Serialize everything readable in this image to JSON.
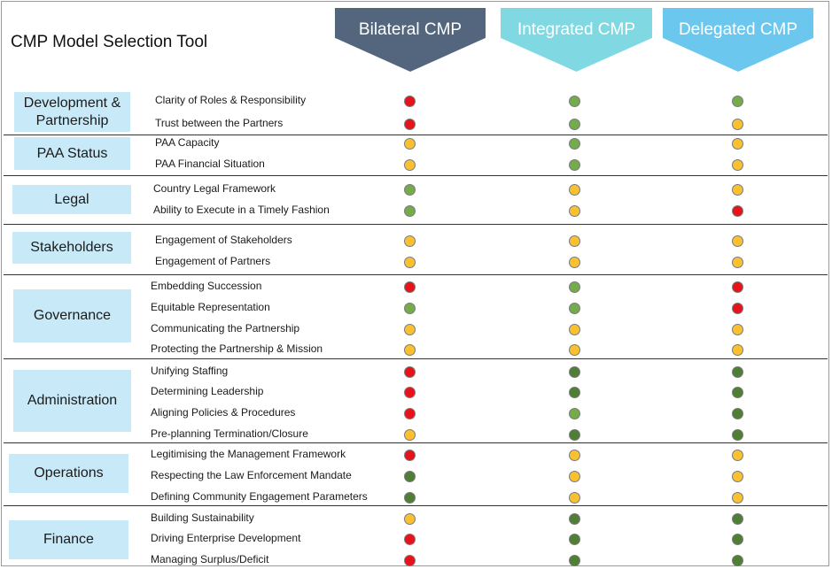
{
  "title": "CMP Model Selection Tool",
  "models": [
    {
      "label": "Bilateral CMP",
      "color": "#53667e",
      "text_color": "#ffffff"
    },
    {
      "label": "Integrated CMP",
      "color": "#80d9e2",
      "text_color": "#ffffff"
    },
    {
      "label": "Delegated CMP",
      "color": "#6bc7ee",
      "text_color": "#ffffff"
    }
  ],
  "rating_colors": {
    "red": "#e8121b",
    "amber": "#fbc02d",
    "green": "#75ac4a",
    "dark_green": "#4f7e35"
  },
  "categories": [
    {
      "name": "Development &\nPartnership",
      "criteria": [
        {
          "label": "Clarity of Roles & Responsibility",
          "ratings": [
            "red",
            "green",
            "green"
          ]
        },
        {
          "label": "Trust between the Partners",
          "ratings": [
            "red",
            "green",
            "amber"
          ]
        }
      ]
    },
    {
      "name": "PAA Status",
      "criteria": [
        {
          "label": "PAA Capacity",
          "ratings": [
            "amber",
            "green",
            "amber"
          ]
        },
        {
          "label": "PAA Financial Situation",
          "ratings": [
            "amber",
            "green",
            "amber"
          ]
        }
      ]
    },
    {
      "name": "Legal",
      "criteria": [
        {
          "label": "Country Legal Framework",
          "ratings": [
            "green",
            "amber",
            "amber"
          ]
        },
        {
          "label": "Ability to Execute in a Timely Fashion",
          "ratings": [
            "green",
            "amber",
            "red"
          ]
        }
      ]
    },
    {
      "name": "Stakeholders",
      "criteria": [
        {
          "label": "Engagement of Stakeholders",
          "ratings": [
            "amber",
            "amber",
            "amber"
          ]
        },
        {
          "label": "Engagement of Partners",
          "ratings": [
            "amber",
            "amber",
            "amber"
          ]
        }
      ]
    },
    {
      "name": "Governance",
      "criteria": [
        {
          "label": "Embedding Succession",
          "ratings": [
            "red",
            "green",
            "red"
          ]
        },
        {
          "label": "Equitable Representation",
          "ratings": [
            "green",
            "green",
            "red"
          ]
        },
        {
          "label": "Communicating the Partnership",
          "ratings": [
            "amber",
            "amber",
            "amber"
          ]
        },
        {
          "label": "Protecting the Partnership & Mission",
          "ratings": [
            "amber",
            "amber",
            "amber"
          ]
        }
      ]
    },
    {
      "name": "Administration",
      "criteria": [
        {
          "label": "Unifying Staffing",
          "ratings": [
            "red",
            "dark_green",
            "dark_green"
          ]
        },
        {
          "label": "Determining Leadership",
          "ratings": [
            "red",
            "dark_green",
            "dark_green"
          ]
        },
        {
          "label": "Aligning Policies & Procedures",
          "ratings": [
            "red",
            "green",
            "dark_green"
          ]
        },
        {
          "label": "Pre-planning Termination/Closure",
          "ratings": [
            "amber",
            "dark_green",
            "dark_green"
          ]
        }
      ]
    },
    {
      "name": "Operations",
      "criteria": [
        {
          "label": "Legitimising the Management Framework",
          "ratings": [
            "red",
            "amber",
            "amber"
          ]
        },
        {
          "label": "Respecting the Law Enforcement Mandate",
          "ratings": [
            "dark_green",
            "amber",
            "amber"
          ]
        },
        {
          "label": "Defining Community Engagement Parameters",
          "ratings": [
            "dark_green",
            "amber",
            "amber"
          ]
        }
      ]
    },
    {
      "name": "Finance",
      "criteria": [
        {
          "label": "Building Sustainability",
          "ratings": [
            "amber",
            "dark_green",
            "dark_green"
          ]
        },
        {
          "label": "Driving Enterprise Development",
          "ratings": [
            "red",
            "dark_green",
            "dark_green"
          ]
        },
        {
          "label": "Managing Surplus/Deficit",
          "ratings": [
            "red",
            "dark_green",
            "dark_green"
          ]
        }
      ]
    }
  ]
}
